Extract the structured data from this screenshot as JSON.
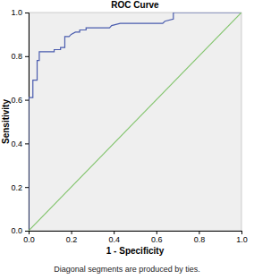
{
  "chart_data": {
    "type": "line",
    "title": "ROC Curve",
    "x_label": "1 - Specificity",
    "y_label": "Sensitivity",
    "footnote": "Diagonal segments are produced by ties.",
    "xlim": [
      0,
      1
    ],
    "ylim": [
      0,
      1
    ],
    "xticks": [
      {
        "value": 0,
        "label": "0.0"
      },
      0.2,
      0.4,
      0.6,
      0.8,
      {
        "value": 1,
        "label": "1.0"
      }
    ],
    "yticks": [
      {
        "value": 0,
        "label": "0.0"
      },
      0.2,
      0.4,
      0.6,
      0.8,
      {
        "value": 1,
        "label": "1.0"
      }
    ],
    "series": [
      {
        "color": "#4a5cae",
        "x": [
          0,
          0,
          0.02,
          0.02,
          0.04,
          0.04,
          0.05,
          0.05,
          0.12,
          0.12,
          0.15,
          0.15,
          0.17,
          0.17,
          0.19,
          0.2,
          0.22,
          0.24,
          0.24,
          0.27,
          0.27,
          0.38,
          0.39,
          0.43,
          0.63,
          0.64,
          0.68,
          0.68,
          1
        ],
        "values": [
          0,
          0.61,
          0.61,
          0.69,
          0.69,
          0.78,
          0.78,
          0.82,
          0.82,
          0.83,
          0.83,
          0.84,
          0.84,
          0.89,
          0.89,
          0.9,
          0.91,
          0.91,
          0.92,
          0.92,
          0.93,
          0.93,
          0.94,
          0.95,
          0.95,
          0.96,
          0.97,
          1,
          1
        ]
      },
      {
        "color": "#82c46c",
        "x": [
          0,
          1
        ],
        "values": [
          0,
          1
        ]
      }
    ]
  }
}
